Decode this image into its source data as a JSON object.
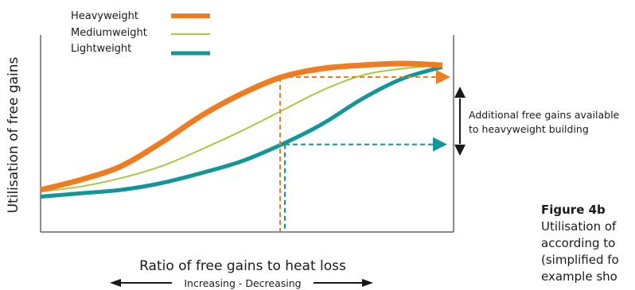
{
  "chart_data": {
    "type": "line",
    "title": "",
    "xlabel": "Ratio of free gains to heat loss",
    "xlabel_sub": "Increasing - Decreasing",
    "ylabel": "Utilisation of free gains",
    "x": [
      0,
      0.1,
      0.2,
      0.3,
      0.4,
      0.5,
      0.6,
      0.7,
      0.8,
      0.9,
      1.0
    ],
    "series": [
      {
        "name": "Heavyweight",
        "color": "#ee7d22",
        "values": [
          0.25,
          0.31,
          0.39,
          0.53,
          0.69,
          0.82,
          0.92,
          0.97,
          0.99,
          1.0,
          0.99
        ]
      },
      {
        "name": "Mediumweight",
        "color": "#a8c93a",
        "values": [
          0.24,
          0.27,
          0.32,
          0.39,
          0.49,
          0.6,
          0.72,
          0.84,
          0.93,
          0.97,
          0.99
        ]
      },
      {
        "name": "Lightweight",
        "color": "#13969a",
        "values": [
          0.21,
          0.23,
          0.25,
          0.29,
          0.35,
          0.42,
          0.52,
          0.64,
          0.79,
          0.91,
          0.98
        ]
      }
    ],
    "legend_position": "top-left",
    "grid": false,
    "marker_x": 0.6,
    "annotation": [
      "Additional free gains available",
      "to heavyweight building"
    ]
  },
  "caption": {
    "title": "Figure 4b",
    "lines": [
      "Utilisation of",
      "according to",
      "(simplified fo",
      "example sho"
    ]
  }
}
